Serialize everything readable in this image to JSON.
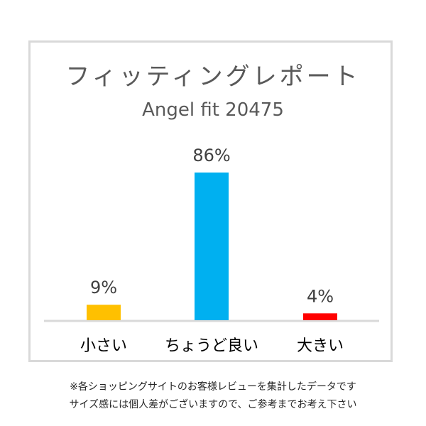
{
  "chart_data": {
    "type": "bar",
    "title": "フィッティングレポート",
    "subtitle": "Angel fit 20475",
    "categories": [
      "小さい",
      "ちょうど良い",
      "大きい"
    ],
    "values": [
      9,
      86,
      4
    ],
    "value_labels": [
      "9%",
      "86%",
      "4%"
    ],
    "colors": [
      "#ffc000",
      "#00b0f0",
      "#ff0000"
    ],
    "ylim": [
      0,
      100
    ],
    "grid": false,
    "legend": "none"
  },
  "footnotes": {
    "line1": "※各ショッピングサイトのお客様レビューを集計したデータです",
    "line2": "サイズ感には個人差がございますので、ご参考までお考え下さい"
  }
}
